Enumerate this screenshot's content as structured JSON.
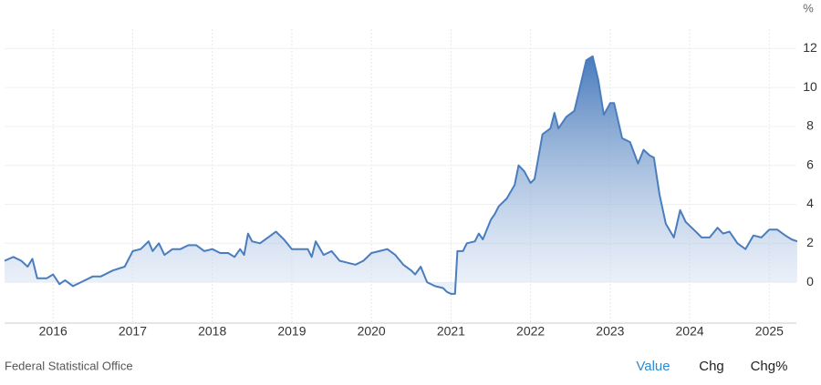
{
  "chart_data": {
    "type": "area",
    "y_unit": "%",
    "color": "#4a7dbd",
    "x": [
      2015.39,
      2015.5,
      2015.6,
      2015.68,
      2015.74,
      2015.8,
      2015.92,
      2016.0,
      2016.08,
      2016.15,
      2016.25,
      2016.35,
      2016.5,
      2016.6,
      2016.75,
      2016.9,
      2017.0,
      2017.1,
      2017.2,
      2017.25,
      2017.33,
      2017.4,
      2017.5,
      2017.6,
      2017.7,
      2017.8,
      2017.9,
      2018.0,
      2018.1,
      2018.2,
      2018.28,
      2018.35,
      2018.4,
      2018.45,
      2018.5,
      2018.6,
      2018.7,
      2018.8,
      2018.9,
      2019.0,
      2019.1,
      2019.2,
      2019.25,
      2019.3,
      2019.4,
      2019.5,
      2019.6,
      2019.7,
      2019.8,
      2019.9,
      2020.0,
      2020.1,
      2020.2,
      2020.3,
      2020.4,
      2020.5,
      2020.55,
      2020.62,
      2020.7,
      2020.8,
      2020.9,
      2020.95,
      2021.0,
      2021.05,
      2021.08,
      2021.15,
      2021.2,
      2021.3,
      2021.35,
      2021.4,
      2021.5,
      2021.55,
      2021.6,
      2021.7,
      2021.8,
      2021.85,
      2021.92,
      2022.0,
      2022.05,
      2022.15,
      2022.25,
      2022.3,
      2022.35,
      2022.45,
      2022.55,
      2022.62,
      2022.7,
      2022.78,
      2022.85,
      2022.92,
      2023.0,
      2023.05,
      2023.15,
      2023.25,
      2023.35,
      2023.42,
      2023.5,
      2023.55,
      2023.62,
      2023.7,
      2023.8,
      2023.88,
      2023.95,
      2024.05,
      2024.15,
      2024.25,
      2024.35,
      2024.42,
      2024.5,
      2024.6,
      2024.7,
      2024.8,
      2024.9,
      2025.0,
      2025.1,
      2025.2,
      2025.28,
      2025.35
    ],
    "values": [
      1.1,
      1.3,
      1.1,
      0.8,
      1.2,
      0.2,
      0.2,
      0.4,
      -0.1,
      0.1,
      -0.2,
      0.0,
      0.3,
      0.3,
      0.6,
      0.8,
      1.6,
      1.7,
      2.1,
      1.6,
      2.0,
      1.4,
      1.7,
      1.7,
      1.9,
      1.9,
      1.6,
      1.7,
      1.5,
      1.5,
      1.3,
      1.7,
      1.4,
      2.5,
      2.1,
      2.0,
      2.3,
      2.6,
      2.2,
      1.7,
      1.7,
      1.7,
      1.3,
      2.1,
      1.4,
      1.6,
      1.1,
      1.0,
      0.9,
      1.1,
      1.5,
      1.6,
      1.7,
      1.4,
      0.9,
      0.6,
      0.4,
      0.8,
      0.0,
      -0.2,
      -0.3,
      -0.5,
      -0.6,
      -0.6,
      1.6,
      1.6,
      2.0,
      2.1,
      2.5,
      2.2,
      3.2,
      3.5,
      3.9,
      4.3,
      5.0,
      6.0,
      5.7,
      5.1,
      5.3,
      7.6,
      7.9,
      8.7,
      7.9,
      8.5,
      8.8,
      10.0,
      11.4,
      11.6,
      10.4,
      8.6,
      9.2,
      9.2,
      7.4,
      7.2,
      6.1,
      6.8,
      6.5,
      6.4,
      4.5,
      3.0,
      2.3,
      3.7,
      3.1,
      2.7,
      2.3,
      2.3,
      2.8,
      2.5,
      2.6,
      2.0,
      1.7,
      2.4,
      2.3,
      2.7,
      2.7,
      2.4,
      2.2,
      2.1
    ],
    "xlim": [
      2015.39,
      2025.34
    ],
    "xticks": [
      2016,
      2017,
      2018,
      2019,
      2020,
      2021,
      2022,
      2023,
      2024,
      2025
    ],
    "ylim": [
      -2.1,
      13.0
    ],
    "yticks": [
      0,
      2,
      4,
      6,
      8,
      10,
      12
    ],
    "grid": true
  },
  "footer": {
    "source": "Federal Statistical Office",
    "tabs": [
      "Value",
      "Chg",
      "Chg%"
    ]
  }
}
